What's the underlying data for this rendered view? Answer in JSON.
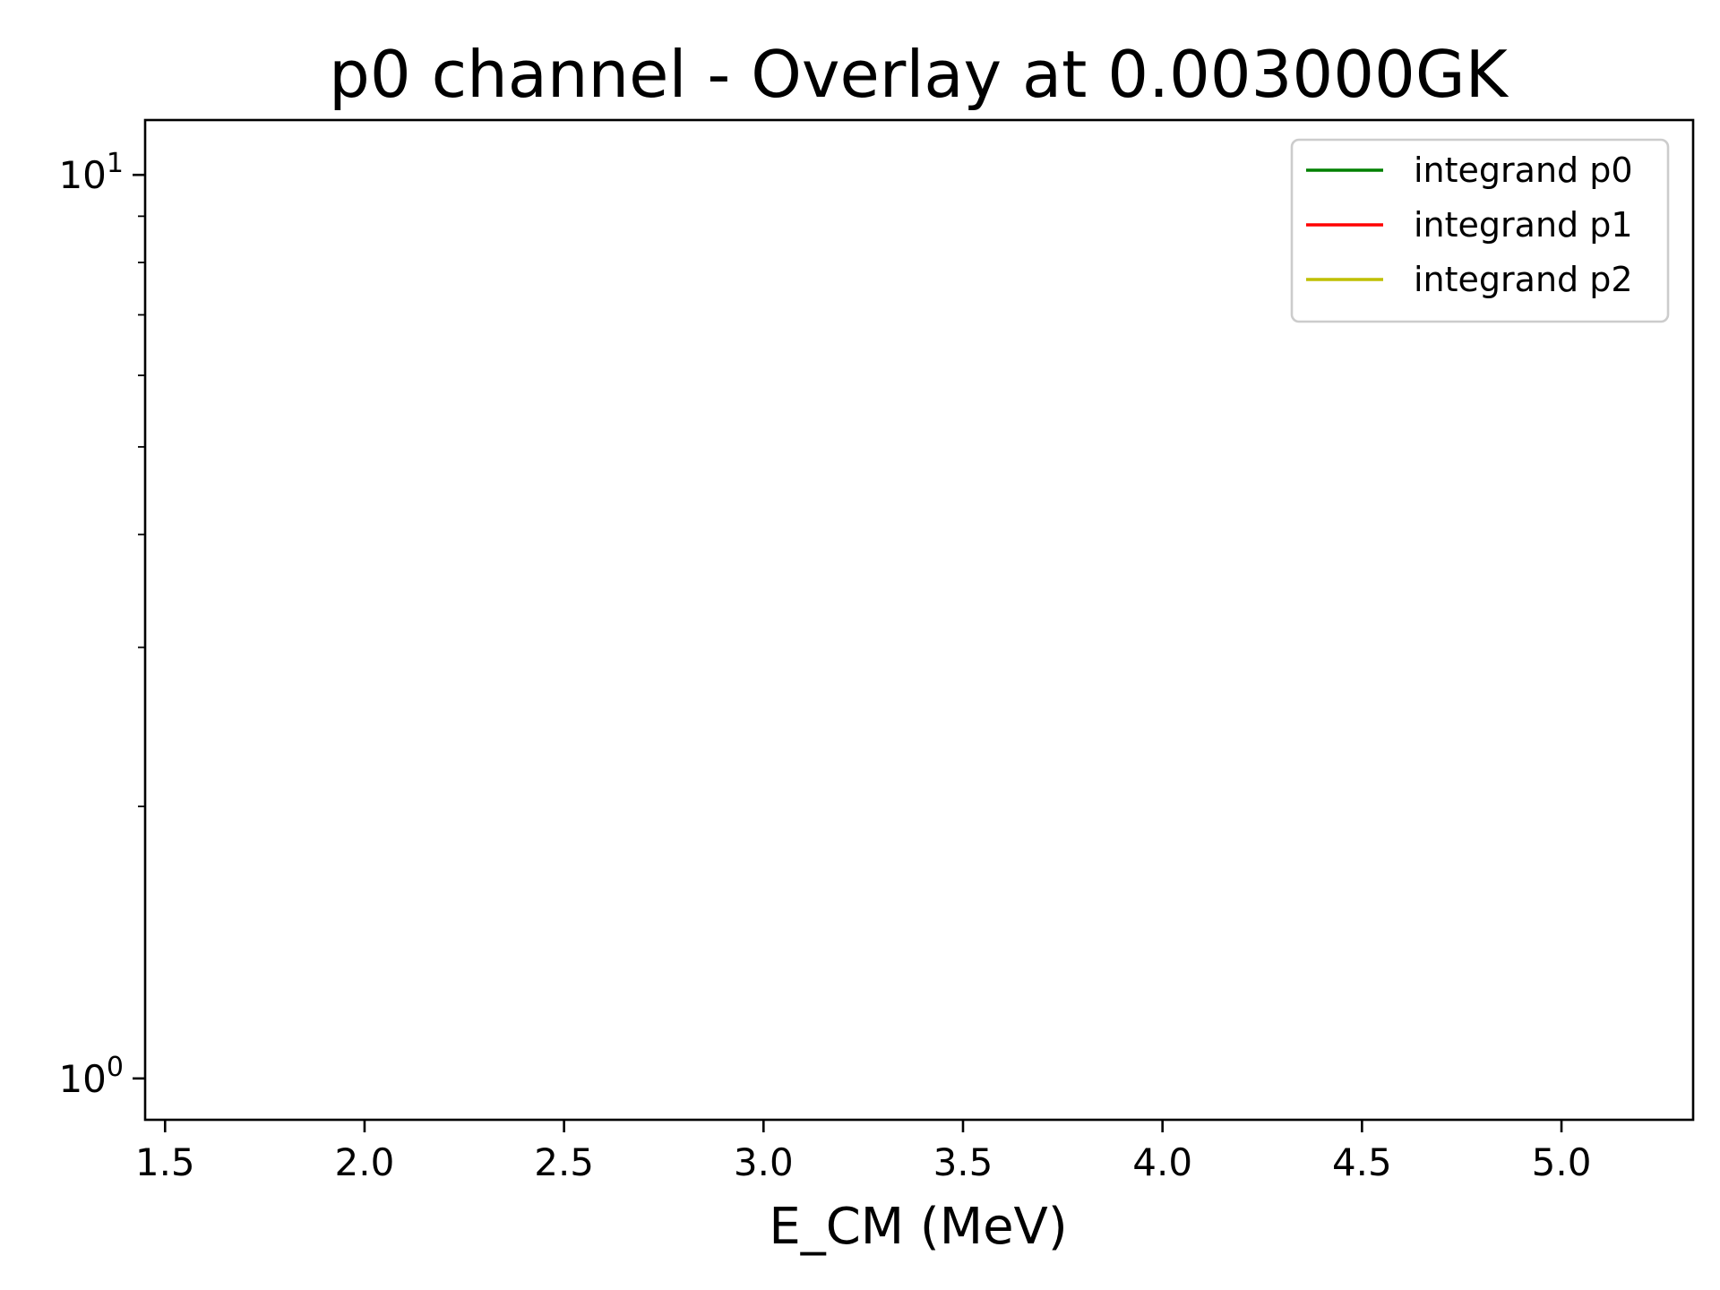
{
  "chart_data": {
    "type": "line",
    "title": "p0 channel - Overlay at 0.003000GK",
    "xlabel": "E_CM (MeV)",
    "ylabel": "",
    "xscale": "linear",
    "yscale": "log",
    "xlim": [
      1.45,
      5.33
    ],
    "ylim": [
      0.9,
      11.5
    ],
    "xticks": [
      {
        "value": 1.5,
        "label": "1.5"
      },
      {
        "value": 2.0,
        "label": "2.0"
      },
      {
        "value": 2.5,
        "label": "2.5"
      },
      {
        "value": 3.0,
        "label": "3.0"
      },
      {
        "value": 3.5,
        "label": "3.5"
      },
      {
        "value": 4.0,
        "label": "4.0"
      },
      {
        "value": 4.5,
        "label": "4.5"
      },
      {
        "value": 5.0,
        "label": "5.0"
      }
    ],
    "yticks_major": [
      {
        "value": 1,
        "base": "10",
        "exp": "0"
      },
      {
        "value": 10,
        "base": "10",
        "exp": "1"
      }
    ],
    "yticks_minor": [
      2,
      3,
      4,
      5,
      6,
      7,
      8,
      9
    ],
    "grid": false,
    "legend_position": "top-right",
    "series": [
      {
        "name": "integrand p0",
        "color": "#008000",
        "x": [],
        "y": []
      },
      {
        "name": "integrand p1",
        "color": "#ff0000",
        "x": [],
        "y": []
      },
      {
        "name": "integrand p2",
        "color": "#bfbf00",
        "x": [],
        "y": []
      }
    ]
  }
}
